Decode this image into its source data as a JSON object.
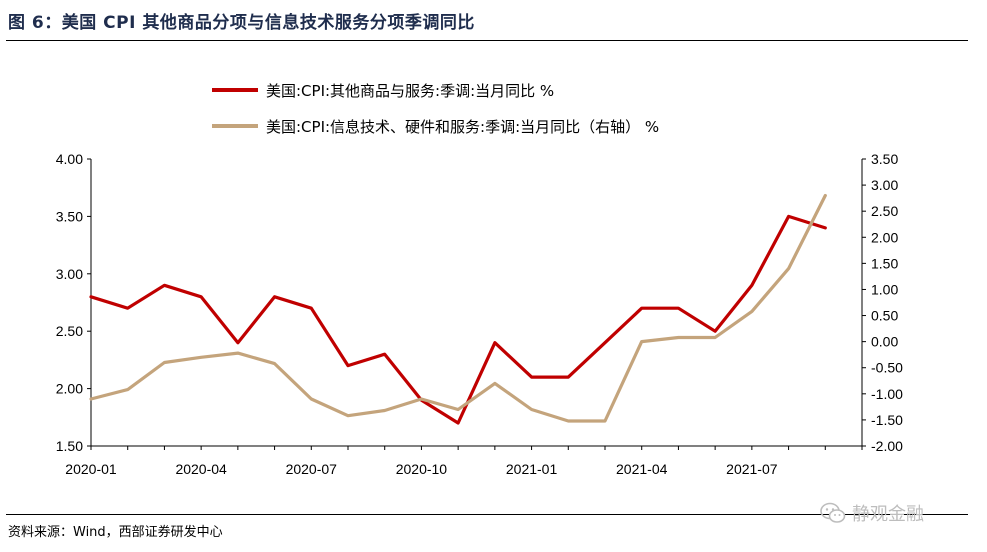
{
  "figure": {
    "title": "图 6：美国 CPI 其他商品分项与信息技术服务分项季调同比",
    "source": "资料来源：Wind，西部证券研发中心",
    "watermark": "静观金融",
    "watermark_icon": "wechat-icon"
  },
  "chart_data": {
    "type": "line",
    "x": [
      "2020-01",
      "2020-02",
      "2020-03",
      "2020-04",
      "2020-05",
      "2020-06",
      "2020-07",
      "2020-08",
      "2020-09",
      "2020-10",
      "2020-11",
      "2020-12",
      "2021-01",
      "2021-02",
      "2021-03",
      "2021-04",
      "2021-05",
      "2021-06",
      "2021-07",
      "2021-08",
      "2021-09"
    ],
    "x_tick_labels": [
      "2020-01",
      "2020-04",
      "2020-07",
      "2020-10",
      "2021-01",
      "2021-04",
      "2021-07"
    ],
    "y_left": {
      "min": 1.5,
      "max": 4.0,
      "step": 0.5,
      "tick_labels": [
        "4.00",
        "3.50",
        "3.00",
        "2.50",
        "2.00",
        "1.50"
      ]
    },
    "y_right": {
      "min": -2.0,
      "max": 3.5,
      "step": 0.5,
      "tick_labels": [
        "3.50",
        "3.00",
        "2.50",
        "2.00",
        "1.50",
        "1.00",
        "0.50",
        "0.00",
        "-0.50",
        "-1.00",
        "-1.50",
        "-2.00"
      ]
    },
    "grid": false,
    "legend_position": "top",
    "series": [
      {
        "name": "美国:CPI:其他商品与服务:季调:当月同比 %",
        "axis": "left",
        "color": "#c00000",
        "values": [
          2.8,
          2.7,
          2.9,
          2.8,
          2.4,
          2.8,
          2.7,
          2.2,
          2.3,
          1.9,
          1.7,
          2.4,
          2.1,
          2.1,
          2.4,
          2.7,
          2.7,
          2.5,
          2.9,
          3.5,
          3.4
        ]
      },
      {
        "name": "美国:CPI:信息技术、硬件和服务:季调:当月同比（右轴） %",
        "axis": "right",
        "color": "#c4a47c",
        "values": [
          -1.1,
          -0.92,
          -0.4,
          -0.3,
          -0.22,
          -0.42,
          -1.1,
          -1.42,
          -1.32,
          -1.1,
          -1.3,
          -0.8,
          -1.3,
          -1.52,
          -1.52,
          0.0,
          0.08,
          0.08,
          0.58,
          1.4,
          2.8
        ]
      }
    ]
  }
}
